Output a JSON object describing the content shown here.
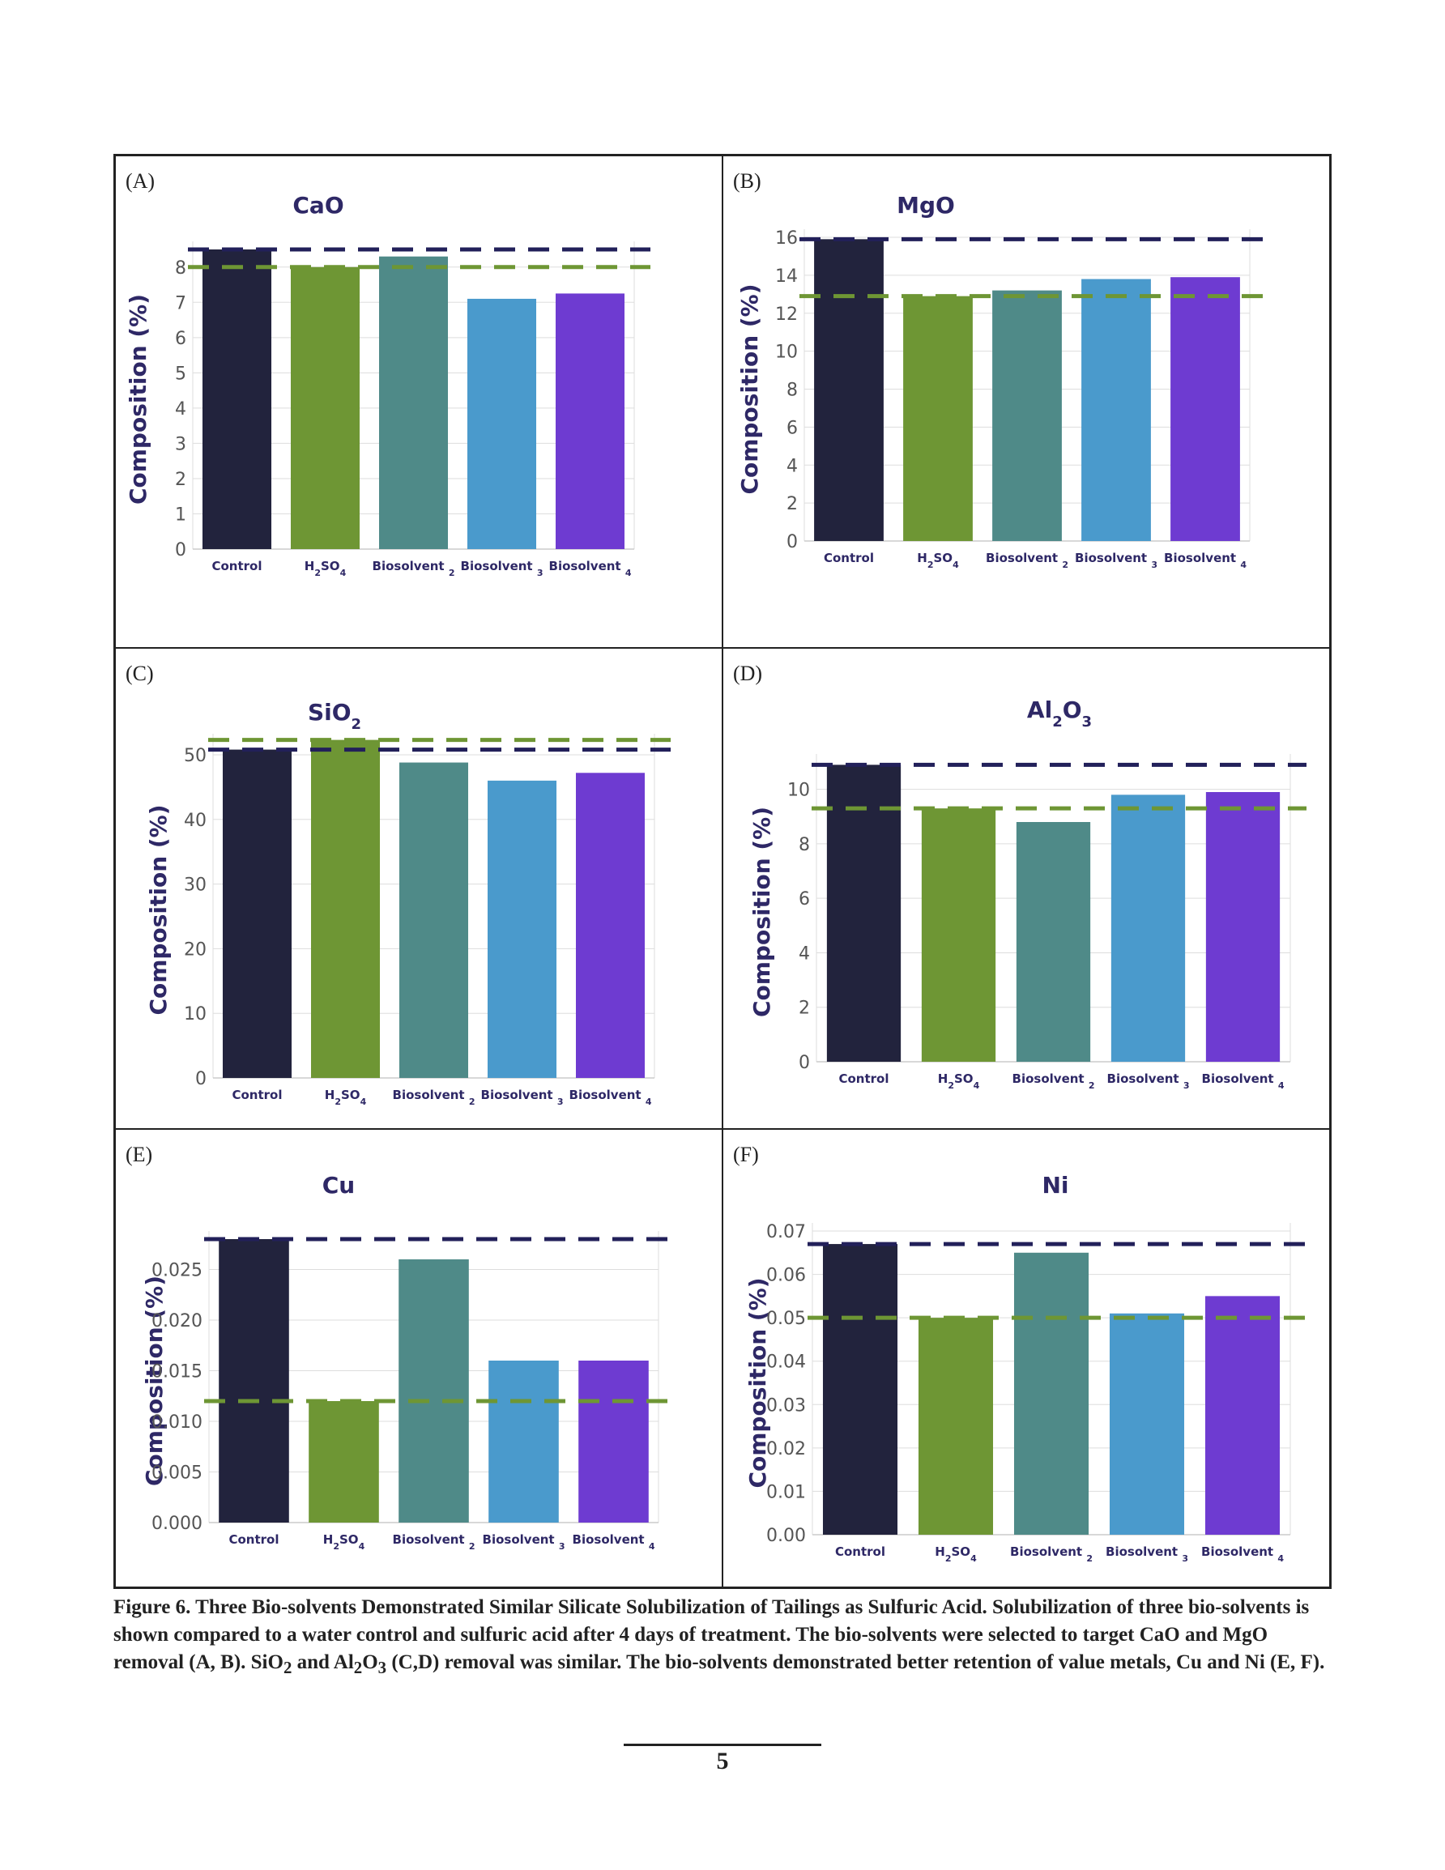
{
  "colors": {
    "control": "#22233d",
    "h2so4": "#6e9634",
    "biosolvent2": "#4f8a88",
    "biosolvent3": "#4a9acc",
    "biosolvent4": "#6e3bd1",
    "control_line": "#22205a",
    "acid_line": "#6e9634",
    "title_text": "#2e2866"
  },
  "chart_data": [
    {
      "panel": "(A)",
      "type": "bar",
      "title": "CaO",
      "ylabel": "Composition (%)",
      "categories": [
        "Control",
        "H2SO4",
        "Biosolvent 2",
        "Biosolvent 3",
        "Biosolvent 4"
      ],
      "values": [
        8.5,
        8.0,
        8.3,
        7.1,
        7.25
      ],
      "reference_lines": [
        8.5,
        8.0
      ],
      "ylim": [
        0,
        8.5
      ],
      "yticks": [
        "0",
        "1",
        "2",
        "3",
        "4",
        "5",
        "6",
        "7",
        "8"
      ],
      "grid": true,
      "legend": "none"
    },
    {
      "panel": "(B)",
      "type": "bar",
      "title": "MgO",
      "ylabel": "Composition (%)",
      "categories": [
        "Control",
        "H2SO4",
        "Biosolvent 2",
        "Biosolvent 3",
        "Biosolvent 4"
      ],
      "values": [
        15.9,
        12.9,
        13.2,
        13.8,
        13.9
      ],
      "reference_lines": [
        15.9,
        12.9
      ],
      "ylim": [
        0,
        16
      ],
      "yticks": [
        "0",
        "2",
        "4",
        "6",
        "8",
        "10",
        "12",
        "14",
        "16"
      ],
      "grid": true,
      "legend": "none"
    },
    {
      "panel": "(C)",
      "type": "bar",
      "title": "SiO2",
      "ylabel": "Composition (%)",
      "categories": [
        "Control",
        "H2SO4",
        "Biosolvent 2",
        "Biosolvent 3",
        "Biosolvent 4"
      ],
      "values": [
        50.8,
        52.3,
        48.8,
        46.0,
        47.2
      ],
      "reference_lines": [
        50.8,
        52.3
      ],
      "ylim": [
        0,
        52
      ],
      "yticks": [
        "0",
        "10",
        "20",
        "30",
        "40",
        "50"
      ],
      "grid": true,
      "legend": "none"
    },
    {
      "panel": "(D)",
      "type": "bar",
      "title": "Al2O3",
      "ylabel": "Composition (%)",
      "categories": [
        "Control",
        "H2SO4",
        "Biosolvent 2",
        "Biosolvent 3",
        "Biosolvent 4"
      ],
      "values": [
        10.9,
        9.3,
        8.8,
        9.8,
        9.9
      ],
      "reference_lines": [
        10.9,
        9.3
      ],
      "ylim": [
        0,
        11
      ],
      "yticks": [
        "0",
        "2",
        "4",
        "6",
        "8",
        "10"
      ],
      "grid": true,
      "legend": "none"
    },
    {
      "panel": "(E)",
      "type": "bar",
      "title": "Cu",
      "ylabel": "Composition (%)",
      "categories": [
        "Control",
        "H2SO4",
        "Biosolvent 2",
        "Biosolvent 3",
        "Biosolvent 4"
      ],
      "values": [
        0.028,
        0.012,
        0.026,
        0.016,
        0.016
      ],
      "reference_lines": [
        0.028,
        0.012
      ],
      "ylim": [
        0,
        0.028
      ],
      "yticks": [
        "0.000",
        "0.005",
        "0.010",
        "0.015",
        "0.020",
        "0.025"
      ],
      "grid": true,
      "legend": "none"
    },
    {
      "panel": "(F)",
      "type": "bar",
      "title": "Ni",
      "ylabel": "Composition (%)",
      "categories": [
        "Control",
        "H2SO4",
        "Biosolvent 2",
        "Biosolvent 3",
        "Biosolvent 4"
      ],
      "values": [
        0.067,
        0.05,
        0.065,
        0.051,
        0.055
      ],
      "reference_lines": [
        0.067,
        0.05
      ],
      "ylim": [
        0,
        0.07
      ],
      "yticks": [
        "0.00",
        "0.01",
        "0.02",
        "0.03",
        "0.04",
        "0.05",
        "0.06",
        "0.07"
      ],
      "grid": true,
      "legend": "none"
    }
  ],
  "caption": "Figure 6.  Three Bio-solvents Demonstrated Similar Silicate Solubilization of Tailings as Sulfuric Acid. Solubilization of three bio-solvents is shown compared to a water control and sulfuric acid after 4 days of treatment. The bio-solvents were selected to target CaO and MgO removal (A, B). SiO2 and Al2O3 (C,D) removal was similar. The bio-solvents demonstrated better retention of value metals, Cu and Ni (E, F).",
  "page_number": "5"
}
